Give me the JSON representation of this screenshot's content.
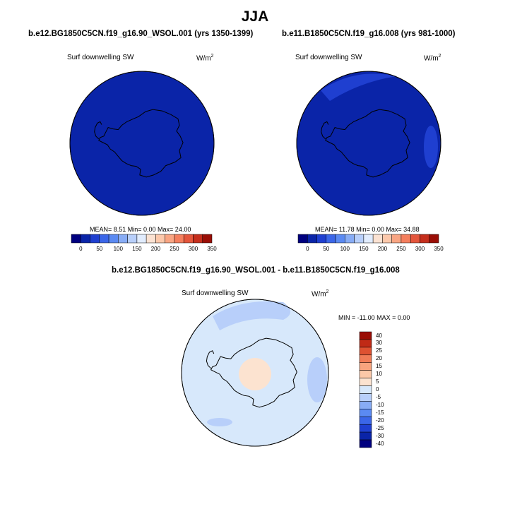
{
  "page": {
    "title": "JJA"
  },
  "panels": [
    {
      "title": "b.e12.BG1850C5CN.f19_g16.90_WSOL.001 (yrs 1350-1399)",
      "var_label": "Surf downwelling SW",
      "units": "W/m",
      "units_sup": "2",
      "stats_text": "MEAN=  8.51  Min=  0.00  Max=  24.00"
    },
    {
      "title": "b.e11.B1850C5CN.f19_g16.008 (yrs 981-1000)",
      "var_label": "Surf downwelling SW",
      "units": "W/m",
      "units_sup": "2",
      "stats_text": "MEAN=  11.78  Min=  0.00  Max=  34.88"
    },
    {
      "title": "b.e12.BG1850C5CN.f19_g16.90_WSOL.001 - b.e11.B1850C5CN.f19_g16.008",
      "var_label": "Surf downwelling SW",
      "units": "W/m",
      "units_sup": "2",
      "stats_text": "MIN = -11.00 MAX =   0.00"
    }
  ],
  "colors": {
    "abs_colorbar": [
      "#00007f",
      "#0a24a8",
      "#1f3fd0",
      "#3b66e8",
      "#5b8af2",
      "#88acf5",
      "#b8cffa",
      "#e1ecfd",
      "#fbe2d2",
      "#fcc8ab",
      "#f9a583",
      "#f47e5d",
      "#e4553b",
      "#c52e1c",
      "#9a0e06"
    ],
    "diff_colorbar": [
      "#00007f",
      "#0a24a8",
      "#1f3fd0",
      "#3b66e8",
      "#5b8af2",
      "#88acf5",
      "#b8cffa",
      "#d7e8fb",
      "#fce3d0",
      "#fbc8a8",
      "#f8a47e",
      "#f07c57",
      "#de5131",
      "#c02a16",
      "#9a0c04"
    ],
    "map_fill_panel1": "#0a24a8",
    "map_fill_panel2": "#0a24a8",
    "map_patch_panel2": "#1f3fd0",
    "map_fill_diff": "#d7e8fb",
    "map_patch_diff": "#b8cffa",
    "map_center_diff": "#fce3d0"
  },
  "chart_data": [
    {
      "type": "heatmap",
      "title": "b.e12.BG1850C5CN.f19_g16.90_WSOL.001 (yrs 1350-1399)",
      "subtitle": "Surf downwelling SW",
      "units": "W/m2",
      "projection": "south polar stereographic",
      "colorbar_ticks": [
        0,
        50,
        100,
        150,
        200,
        250,
        300,
        350
      ],
      "mean": 8.51,
      "min": 0.0,
      "max": 24.0
    },
    {
      "type": "heatmap",
      "title": "b.e11.B1850C5CN.f19_g16.008 (yrs 981-1000)",
      "subtitle": "Surf downwelling SW",
      "units": "W/m2",
      "projection": "south polar stereographic",
      "colorbar_ticks": [
        0,
        50,
        100,
        150,
        200,
        250,
        300,
        350
      ],
      "mean": 11.78,
      "min": 0.0,
      "max": 34.88
    },
    {
      "type": "heatmap",
      "title": "b.e12.BG1850C5CN.f19_g16.90_WSOL.001 - b.e11.B1850C5CN.f19_g16.008",
      "subtitle": "Surf downwelling SW",
      "units": "W/m2",
      "projection": "south polar stereographic",
      "colorbar_ticks": [
        40,
        30,
        25,
        20,
        15,
        10,
        5,
        0,
        -5,
        -10,
        -15,
        -20,
        -25,
        -30,
        -40
      ],
      "min": -11.0,
      "max": 0.0
    }
  ]
}
